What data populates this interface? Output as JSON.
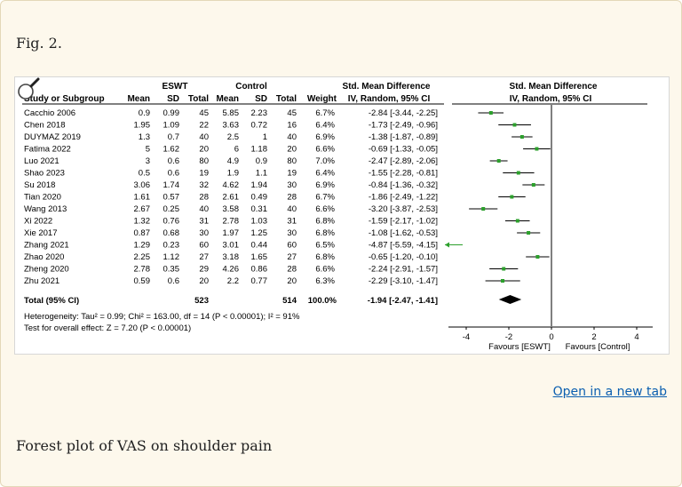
{
  "figure": {
    "label": "Fig. 2.",
    "caption": "Forest plot of VAS on shoulder pain",
    "open_link": "Open in a new tab",
    "zoom_icon": "magnifier-icon"
  },
  "chart_data": {
    "type": "forest",
    "group_headers": {
      "eswt": "ESWT",
      "control": "Control",
      "smd_text": "Std. Mean Difference",
      "smd_plot": "Std. Mean Difference"
    },
    "column_headers": {
      "study": "Study or Subgroup",
      "mean1": "Mean",
      "sd1": "SD",
      "total1": "Total",
      "mean2": "Mean",
      "sd2": "SD",
      "total2": "Total",
      "weight": "Weight",
      "ci": "IV, Random, 95% CI",
      "ci_plot": "IV, Random, 95% CI"
    },
    "studies": [
      {
        "name": "Cacchio 2006",
        "eswt_mean": "0.9",
        "eswt_sd": "0.99",
        "eswt_total": "45",
        "ctrl_mean": "5.85",
        "ctrl_sd": "2.23",
        "ctrl_total": "45",
        "weight": "6.7%",
        "ci_text": "-2.84 [-3.44, -2.25]",
        "smd": -2.84,
        "lo": -3.44,
        "hi": -2.25
      },
      {
        "name": "Chen 2018",
        "eswt_mean": "1.95",
        "eswt_sd": "1.09",
        "eswt_total": "22",
        "ctrl_mean": "3.63",
        "ctrl_sd": "0.72",
        "ctrl_total": "16",
        "weight": "6.4%",
        "ci_text": "-1.73 [-2.49, -0.96]",
        "smd": -1.73,
        "lo": -2.49,
        "hi": -0.96
      },
      {
        "name": "DUYMAZ 2019",
        "eswt_mean": "1.3",
        "eswt_sd": "0.7",
        "eswt_total": "40",
        "ctrl_mean": "2.5",
        "ctrl_sd": "1",
        "ctrl_total": "40",
        "weight": "6.9%",
        "ci_text": "-1.38 [-1.87, -0.89]",
        "smd": -1.38,
        "lo": -1.87,
        "hi": -0.89
      },
      {
        "name": "Fatima 2022",
        "eswt_mean": "5",
        "eswt_sd": "1.62",
        "eswt_total": "20",
        "ctrl_mean": "6",
        "ctrl_sd": "1.18",
        "ctrl_total": "20",
        "weight": "6.6%",
        "ci_text": "-0.69 [-1.33, -0.05]",
        "smd": -0.69,
        "lo": -1.33,
        "hi": -0.05
      },
      {
        "name": "Luo 2021",
        "eswt_mean": "3",
        "eswt_sd": "0.6",
        "eswt_total": "80",
        "ctrl_mean": "4.9",
        "ctrl_sd": "0.9",
        "ctrl_total": "80",
        "weight": "7.0%",
        "ci_text": "-2.47 [-2.89, -2.06]",
        "smd": -2.47,
        "lo": -2.89,
        "hi": -2.06
      },
      {
        "name": "Shao 2023",
        "eswt_mean": "0.5",
        "eswt_sd": "0.6",
        "eswt_total": "19",
        "ctrl_mean": "1.9",
        "ctrl_sd": "1.1",
        "ctrl_total": "19",
        "weight": "6.4%",
        "ci_text": "-1.55 [-2.28, -0.81]",
        "smd": -1.55,
        "lo": -2.28,
        "hi": -0.81
      },
      {
        "name": "Su 2018",
        "eswt_mean": "3.06",
        "eswt_sd": "1.74",
        "eswt_total": "32",
        "ctrl_mean": "4.62",
        "ctrl_sd": "1.94",
        "ctrl_total": "30",
        "weight": "6.9%",
        "ci_text": "-0.84 [-1.36, -0.32]",
        "smd": -0.84,
        "lo": -1.36,
        "hi": -0.32
      },
      {
        "name": "Tian 2020",
        "eswt_mean": "1.61",
        "eswt_sd": "0.57",
        "eswt_total": "28",
        "ctrl_mean": "2.61",
        "ctrl_sd": "0.49",
        "ctrl_total": "28",
        "weight": "6.7%",
        "ci_text": "-1.86 [-2.49, -1.22]",
        "smd": -1.86,
        "lo": -2.49,
        "hi": -1.22
      },
      {
        "name": "Wang 2013",
        "eswt_mean": "2.67",
        "eswt_sd": "0.25",
        "eswt_total": "40",
        "ctrl_mean": "3.58",
        "ctrl_sd": "0.31",
        "ctrl_total": "40",
        "weight": "6.6%",
        "ci_text": "-3.20 [-3.87, -2.53]",
        "smd": -3.2,
        "lo": -3.87,
        "hi": -2.53
      },
      {
        "name": "Xi 2022",
        "eswt_mean": "1.32",
        "eswt_sd": "0.76",
        "eswt_total": "31",
        "ctrl_mean": "2.78",
        "ctrl_sd": "1.03",
        "ctrl_total": "31",
        "weight": "6.8%",
        "ci_text": "-1.59 [-2.17, -1.02]",
        "smd": -1.59,
        "lo": -2.17,
        "hi": -1.02
      },
      {
        "name": "Xie 2017",
        "eswt_mean": "0.87",
        "eswt_sd": "0.68",
        "eswt_total": "30",
        "ctrl_mean": "1.97",
        "ctrl_sd": "1.25",
        "ctrl_total": "30",
        "weight": "6.8%",
        "ci_text": "-1.08 [-1.62, -0.53]",
        "smd": -1.08,
        "lo": -1.62,
        "hi": -0.53
      },
      {
        "name": "Zhang 2021",
        "eswt_mean": "1.29",
        "eswt_sd": "0.23",
        "eswt_total": "60",
        "ctrl_mean": "3.01",
        "ctrl_sd": "0.44",
        "ctrl_total": "60",
        "weight": "6.5%",
        "ci_text": "-4.87 [-5.59, -4.15]",
        "smd": -4.87,
        "lo": -5.59,
        "hi": -4.15
      },
      {
        "name": "Zhao 2020",
        "eswt_mean": "2.25",
        "eswt_sd": "1.12",
        "eswt_total": "27",
        "ctrl_mean": "3.18",
        "ctrl_sd": "1.65",
        "ctrl_total": "27",
        "weight": "6.8%",
        "ci_text": "-0.65 [-1.20, -0.10]",
        "smd": -0.65,
        "lo": -1.2,
        "hi": -0.1
      },
      {
        "name": "Zheng 2020",
        "eswt_mean": "2.78",
        "eswt_sd": "0.35",
        "eswt_total": "29",
        "ctrl_mean": "4.26",
        "ctrl_sd": "0.86",
        "ctrl_total": "28",
        "weight": "6.6%",
        "ci_text": "-2.24 [-2.91, -1.57]",
        "smd": -2.24,
        "lo": -2.91,
        "hi": -1.57
      },
      {
        "name": "Zhu 2021",
        "eswt_mean": "0.59",
        "eswt_sd": "0.6",
        "eswt_total": "20",
        "ctrl_mean": "2.2",
        "ctrl_sd": "0.77",
        "ctrl_total": "20",
        "weight": "6.3%",
        "ci_text": "-2.29 [-3.10, -1.47]",
        "smd": -2.29,
        "lo": -3.1,
        "hi": -1.47
      }
    ],
    "total": {
      "name": "Total (95% CI)",
      "eswt_total": "523",
      "ctrl_total": "514",
      "weight": "100.0%",
      "ci_text": "-1.94 [-2.47, -1.41]",
      "smd": -1.94,
      "lo": -2.47,
      "hi": -1.41
    },
    "heterogeneity": "Heterogeneity: Tau² = 0.99; Chi² = 163.00, df = 14 (P < 0.00001); I² = 91%",
    "overall_effect": "Test for overall effect: Z = 7.20 (P < 0.00001)",
    "axis": {
      "min": -4,
      "max": 4,
      "ticks": [
        "-4",
        "-2",
        "0",
        "2",
        "4"
      ],
      "left_label": "Favours [ESWT]",
      "right_label": "Favours [Control]"
    },
    "colors": {
      "point": "#2ca02c",
      "diamond": "#000000",
      "arrow": "#2ca02c"
    }
  }
}
